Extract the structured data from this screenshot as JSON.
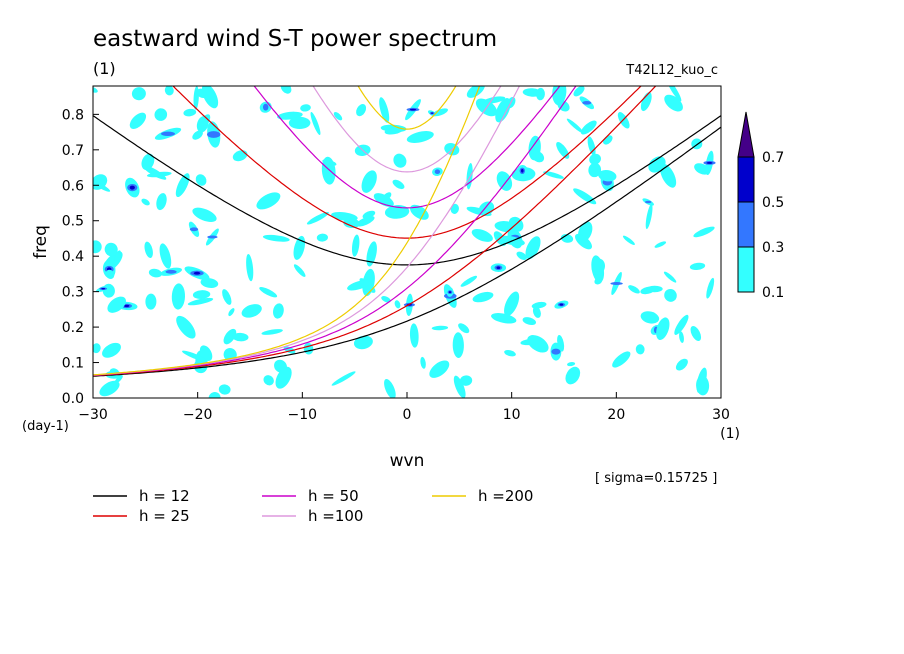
{
  "title": "eastward wind S-T power spectrum",
  "subtitle_left": "(1)",
  "subtitle_right": "T42L12_kuo_c",
  "sigma_text": "[ sigma=0.15725 ]",
  "chart_data": {
    "type": "contour",
    "title": "eastward wind S-T power spectrum",
    "xlabel": "wvn",
    "ylabel": "freq",
    "x_unit": "(1)",
    "y_unit": "(day-1)",
    "xlim": [
      -30,
      30
    ],
    "ylim": [
      0,
      0.88
    ],
    "xticks": [
      -30,
      -20,
      -10,
      0,
      10,
      20,
      30
    ],
    "yticks": [
      0.0,
      0.1,
      0.2,
      0.3,
      0.4,
      0.5,
      0.6,
      0.7,
      0.8
    ],
    "colorbar": {
      "levels": [
        0.1,
        0.3,
        0.5,
        0.7
      ],
      "colors": [
        "#33ffff",
        "#3377ff",
        "#0000cc",
        "#440088"
      ]
    },
    "series": [
      {
        "name": "h = 12",
        "color": "#000000",
        "h": 12
      },
      {
        "name": "h = 25",
        "color": "#dd0000",
        "h": 25
      },
      {
        "name": "h = 50",
        "color": "#cc00cc",
        "h": 50
      },
      {
        "name": "h =100",
        "color": "#dd99dd",
        "h": 100
      },
      {
        "name": "h =200",
        "color": "#eecc00",
        "h": 200
      }
    ]
  }
}
